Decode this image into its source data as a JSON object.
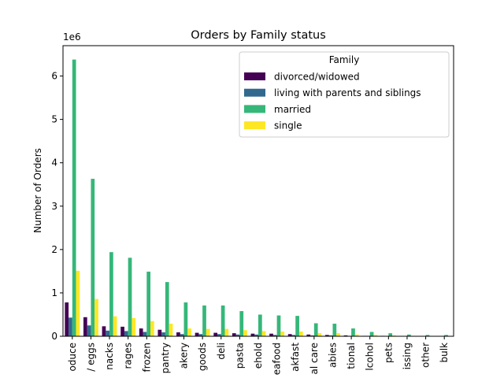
{
  "chart_data": {
    "type": "bar",
    "title": "Orders by Family status",
    "xlabel": "",
    "ylabel": "Number of Orders",
    "y_offset_label": "1e6",
    "ylim": [
      0,
      6.7
    ],
    "y_ticks": [
      "0",
      "1",
      "2",
      "3",
      "4",
      "5",
      "6"
    ],
    "grid": false,
    "legend": {
      "title": "Family",
      "placement": "top-right"
    },
    "categories": [
      "produce",
      "dairy eggs",
      "snacks",
      "beverages",
      "frozen",
      "pantry",
      "bakery",
      "canned goods",
      "deli",
      "dry goods pasta",
      "household",
      "meat seafood",
      "breakfast",
      "personal care",
      "babies",
      "international",
      "alcohol",
      "pets",
      "missing",
      "other",
      "bulk"
    ],
    "tick_labels": [
      "oduce",
      "/ eggs",
      "nacks",
      "rages",
      "frozen",
      "pantry",
      "akery",
      "goods",
      "deli",
      "pasta",
      "ehold",
      "eafood",
      "akfast",
      "al care",
      "abies",
      "tional",
      "lcohol",
      "pets",
      "issing",
      "other",
      "bulk"
    ],
    "series": [
      {
        "name": "divorced/widowed",
        "color": "#440154",
        "values": [
          0.78,
          0.44,
          0.23,
          0.22,
          0.18,
          0.15,
          0.09,
          0.08,
          0.08,
          0.07,
          0.06,
          0.06,
          0.05,
          0.04,
          0.03,
          0.02,
          0.01,
          0.01,
          0.005,
          0.003,
          0.002
        ]
      },
      {
        "name": "living with parents and siblings",
        "color": "#31688e",
        "values": [
          0.43,
          0.25,
          0.13,
          0.12,
          0.1,
          0.09,
          0.05,
          0.05,
          0.05,
          0.04,
          0.04,
          0.03,
          0.03,
          0.02,
          0.02,
          0.01,
          0.01,
          0.005,
          0.003,
          0.002,
          0.001
        ]
      },
      {
        "name": "married",
        "color": "#35b779",
        "values": [
          6.38,
          3.63,
          1.94,
          1.81,
          1.49,
          1.25,
          0.78,
          0.71,
          0.71,
          0.58,
          0.5,
          0.48,
          0.47,
          0.3,
          0.29,
          0.18,
          0.1,
          0.07,
          0.04,
          0.03,
          0.03
        ]
      },
      {
        "name": "single",
        "color": "#fde725",
        "values": [
          1.51,
          0.86,
          0.46,
          0.42,
          0.35,
          0.29,
          0.18,
          0.17,
          0.17,
          0.14,
          0.12,
          0.11,
          0.11,
          0.07,
          0.07,
          0.04,
          0.03,
          0.02,
          0.01,
          0.008,
          0.007
        ]
      }
    ]
  }
}
